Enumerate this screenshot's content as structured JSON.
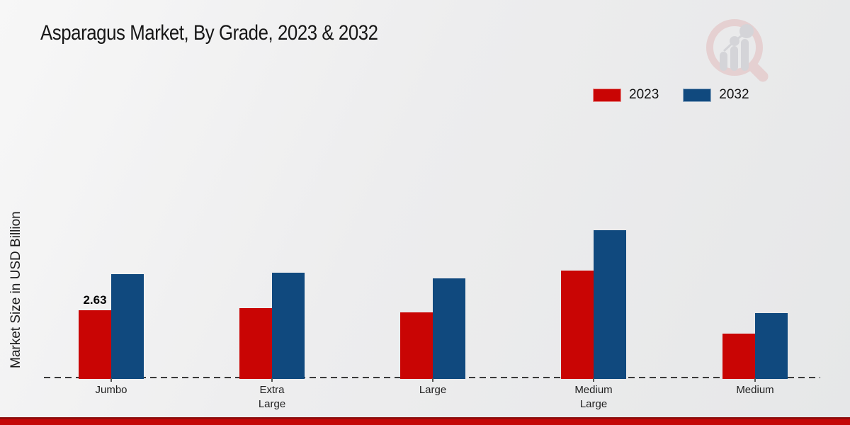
{
  "title": "Asparagus Market, By Grade, 2023 & 2032",
  "y_axis_label": "Market Size in USD Billion",
  "legend": [
    {
      "label": "2023",
      "color": "#c90504"
    },
    {
      "label": "2032",
      "color": "#10497e"
    }
  ],
  "colors": {
    "series_2023": "#c90504",
    "series_2032": "#10497e",
    "baseline_dash": "#3a3a3a",
    "bottom_strip": "#c40707"
  },
  "chart_data": {
    "type": "bar",
    "title": "Asparagus Market, By Grade, 2023 & 2032",
    "ylabel": "Market Size in USD Billion",
    "xlabel": "",
    "categories": [
      "Jumbo",
      "Extra Large",
      "Large",
      "Medium Large",
      "Medium"
    ],
    "series": [
      {
        "name": "2023",
        "color": "#c90504",
        "values": [
          2.63,
          2.71,
          2.55,
          4.15,
          1.74
        ]
      },
      {
        "name": "2032",
        "color": "#10497e",
        "values": [
          4.01,
          4.07,
          3.85,
          5.69,
          2.52
        ]
      }
    ],
    "annotations": [
      {
        "series_index": 0,
        "category_index": 0,
        "text": "2.63"
      }
    ],
    "ylim": [
      0,
      6.5
    ],
    "grid": false,
    "legend_position": "top-right",
    "baseline_style": "dashed"
  }
}
